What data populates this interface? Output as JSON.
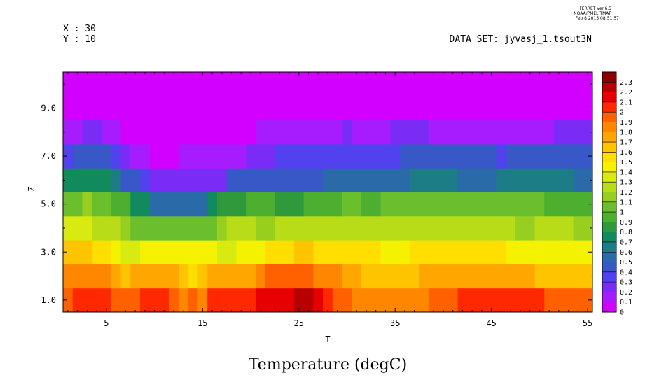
{
  "header": {
    "stamp_lines": [
      "FERRET  Ver.6.5",
      "NOAA/PMEL TMAP",
      "Feb  8 2015 08:51:57"
    ],
    "x_info": "X : 30",
    "y_info": "Y : 10",
    "dataset": "DATA SET: jyvasj_1.tsout3N"
  },
  "chart_data": {
    "type": "heatmap",
    "title": "Temperature (degC)",
    "xlabel": "T",
    "ylabel": "Z",
    "xlim": [
      0.5,
      55.5
    ],
    "ylim": [
      0.5,
      10.5
    ],
    "x_ticks": [
      5,
      15,
      25,
      35,
      45,
      55
    ],
    "x_tick_labels": [
      "5",
      "15",
      "25",
      "35",
      "45",
      "55"
    ],
    "y_ticks": [
      1,
      3,
      5,
      7,
      9
    ],
    "y_tick_labels": [
      "1.0",
      "3.0",
      "5.0",
      "7.0",
      "9.0"
    ],
    "colorbar": {
      "levels": [
        0,
        0.1,
        0.2,
        0.3,
        0.4,
        0.5,
        0.6,
        0.7,
        0.8,
        0.9,
        1,
        1.1,
        1.2,
        1.3,
        1.4,
        1.5,
        1.6,
        1.7,
        1.8,
        1.9,
        2,
        2.1,
        2.2,
        2.3
      ],
      "labels": [
        "0",
        "0.1",
        "0.2",
        "0.3",
        "0.4",
        "0.5",
        "0.6",
        "0.7",
        "0.8",
        "0.9",
        "1",
        "1.1",
        "1.2",
        "1.3",
        "1.4",
        "1.5",
        "1.6",
        "1.7",
        "1.8",
        "1.9",
        "2",
        "2.1",
        "2.2",
        "2.3"
      ],
      "colors": [
        "#d200ff",
        "#a71cff",
        "#7a2cf6",
        "#5141ee",
        "#3958c8",
        "#2a6aa8",
        "#1c7d86",
        "#118a5e",
        "#2f9a3c",
        "#4caf30",
        "#6cbf2c",
        "#96cf20",
        "#b8dc18",
        "#d8ea10",
        "#f4f200",
        "#ffde00",
        "#ffc400",
        "#ffa600",
        "#ff8700",
        "#ff6000",
        "#ff2800",
        "#e80000",
        "#b80000",
        "#8c0000"
      ]
    },
    "z_rows": [
      {
        "z": 1,
        "segments": [
          {
            "from": 0.5,
            "to": 1.5,
            "v": 1.95
          },
          {
            "from": 1.5,
            "to": 5.5,
            "v": 2.05
          },
          {
            "from": 5.5,
            "to": 8.5,
            "v": 1.95
          },
          {
            "from": 8.5,
            "to": 11.5,
            "v": 2.05
          },
          {
            "from": 11.5,
            "to": 12.5,
            "v": 1.95
          },
          {
            "from": 12.5,
            "to": 13.5,
            "v": 1.85
          },
          {
            "from": 13.5,
            "to": 14.5,
            "v": 1.95
          },
          {
            "from": 14.5,
            "to": 15.5,
            "v": 1.85
          },
          {
            "from": 15.5,
            "to": 20.5,
            "v": 2.05
          },
          {
            "from": 20.5,
            "to": 24.5,
            "v": 2.15
          },
          {
            "from": 24.5,
            "to": 26.5,
            "v": 2.25
          },
          {
            "from": 26.5,
            "to": 27.5,
            "v": 2.15
          },
          {
            "from": 27.5,
            "to": 28.5,
            "v": 2.05
          },
          {
            "from": 28.5,
            "to": 30.5,
            "v": 1.95
          },
          {
            "from": 30.5,
            "to": 38.5,
            "v": 1.85
          },
          {
            "from": 38.5,
            "to": 41.5,
            "v": 1.95
          },
          {
            "from": 41.5,
            "to": 50.5,
            "v": 2.05
          },
          {
            "from": 50.5,
            "to": 55.5,
            "v": 1.95
          }
        ]
      },
      {
        "z": 2,
        "segments": [
          {
            "from": 0.5,
            "to": 5.5,
            "v": 1.85
          },
          {
            "from": 5.5,
            "to": 6.5,
            "v": 1.75
          },
          {
            "from": 6.5,
            "to": 7.5,
            "v": 1.65
          },
          {
            "from": 7.5,
            "to": 12.5,
            "v": 1.75
          },
          {
            "from": 12.5,
            "to": 13.5,
            "v": 1.65
          },
          {
            "from": 13.5,
            "to": 14.5,
            "v": 1.55
          },
          {
            "from": 14.5,
            "to": 15.5,
            "v": 1.65
          },
          {
            "from": 15.5,
            "to": 20.5,
            "v": 1.75
          },
          {
            "from": 20.5,
            "to": 21.5,
            "v": 1.85
          },
          {
            "from": 21.5,
            "to": 26.5,
            "v": 1.95
          },
          {
            "from": 26.5,
            "to": 29.5,
            "v": 1.85
          },
          {
            "from": 29.5,
            "to": 31.5,
            "v": 1.75
          },
          {
            "from": 31.5,
            "to": 37.5,
            "v": 1.65
          },
          {
            "from": 37.5,
            "to": 49.5,
            "v": 1.75
          },
          {
            "from": 49.5,
            "to": 55.5,
            "v": 1.65
          }
        ]
      },
      {
        "z": 3,
        "segments": [
          {
            "from": 0.5,
            "to": 3.5,
            "v": 1.65
          },
          {
            "from": 3.5,
            "to": 5.5,
            "v": 1.55
          },
          {
            "from": 5.5,
            "to": 6.5,
            "v": 1.45
          },
          {
            "from": 6.5,
            "to": 8.5,
            "v": 1.35
          },
          {
            "from": 8.5,
            "to": 16.5,
            "v": 1.45
          },
          {
            "from": 16.5,
            "to": 18.5,
            "v": 1.35
          },
          {
            "from": 18.5,
            "to": 21.5,
            "v": 1.45
          },
          {
            "from": 21.5,
            "to": 24.5,
            "v": 1.55
          },
          {
            "from": 24.5,
            "to": 26.5,
            "v": 1.65
          },
          {
            "from": 26.5,
            "to": 33.5,
            "v": 1.55
          },
          {
            "from": 33.5,
            "to": 36.5,
            "v": 1.45
          },
          {
            "from": 36.5,
            "to": 46.5,
            "v": 1.55
          },
          {
            "from": 46.5,
            "to": 55.5,
            "v": 1.45
          }
        ]
      },
      {
        "z": 4,
        "segments": [
          {
            "from": 0.5,
            "to": 3.5,
            "v": 1.35
          },
          {
            "from": 3.5,
            "to": 6.5,
            "v": 1.25
          },
          {
            "from": 6.5,
            "to": 7.5,
            "v": 1.15
          },
          {
            "from": 7.5,
            "to": 16.5,
            "v": 1.05
          },
          {
            "from": 16.5,
            "to": 17.5,
            "v": 1.15
          },
          {
            "from": 17.5,
            "to": 20.5,
            "v": 1.25
          },
          {
            "from": 20.5,
            "to": 22.5,
            "v": 1.15
          },
          {
            "from": 22.5,
            "to": 47.5,
            "v": 1.25
          },
          {
            "from": 47.5,
            "to": 49.5,
            "v": 1.15
          },
          {
            "from": 49.5,
            "to": 53.5,
            "v": 1.25
          },
          {
            "from": 53.5,
            "to": 55.5,
            "v": 1.15
          }
        ]
      },
      {
        "z": 5,
        "segments": [
          {
            "from": 0.5,
            "to": 2.5,
            "v": 1.05
          },
          {
            "from": 2.5,
            "to": 3.5,
            "v": 1.15
          },
          {
            "from": 3.5,
            "to": 5.5,
            "v": 1.05
          },
          {
            "from": 5.5,
            "to": 7.5,
            "v": 0.95
          },
          {
            "from": 7.5,
            "to": 9.5,
            "v": 0.75
          },
          {
            "from": 9.5,
            "to": 15.5,
            "v": 0.55
          },
          {
            "from": 15.5,
            "to": 16.5,
            "v": 0.75
          },
          {
            "from": 16.5,
            "to": 19.5,
            "v": 0.85
          },
          {
            "from": 19.5,
            "to": 22.5,
            "v": 0.95
          },
          {
            "from": 22.5,
            "to": 25.5,
            "v": 0.85
          },
          {
            "from": 25.5,
            "to": 29.5,
            "v": 0.95
          },
          {
            "from": 29.5,
            "to": 31.5,
            "v": 1.05
          },
          {
            "from": 31.5,
            "to": 33.5,
            "v": 0.95
          },
          {
            "from": 33.5,
            "to": 50.5,
            "v": 1.05
          },
          {
            "from": 50.5,
            "to": 55.5,
            "v": 0.95
          }
        ]
      },
      {
        "z": 6,
        "segments": [
          {
            "from": 0.5,
            "to": 5.5,
            "v": 0.75
          },
          {
            "from": 5.5,
            "to": 6.5,
            "v": 0.65
          },
          {
            "from": 6.5,
            "to": 8.5,
            "v": 0.45
          },
          {
            "from": 8.5,
            "to": 9.5,
            "v": 0.35
          },
          {
            "from": 9.5,
            "to": 17.5,
            "v": 0.25
          },
          {
            "from": 17.5,
            "to": 27.5,
            "v": 0.45
          },
          {
            "from": 27.5,
            "to": 36.5,
            "v": 0.55
          },
          {
            "from": 36.5,
            "to": 41.5,
            "v": 0.65
          },
          {
            "from": 41.5,
            "to": 45.5,
            "v": 0.55
          },
          {
            "from": 45.5,
            "to": 53.5,
            "v": 0.65
          },
          {
            "from": 53.5,
            "to": 55.5,
            "v": 0.55
          }
        ]
      },
      {
        "z": 7,
        "segments": [
          {
            "from": 0.5,
            "to": 1.5,
            "v": 0.35
          },
          {
            "from": 1.5,
            "to": 5.5,
            "v": 0.45
          },
          {
            "from": 5.5,
            "to": 6.5,
            "v": 0.35
          },
          {
            "from": 6.5,
            "to": 7.5,
            "v": 0.25
          },
          {
            "from": 7.5,
            "to": 9.5,
            "v": 0.15
          },
          {
            "from": 9.5,
            "to": 12.5,
            "v": 0.05
          },
          {
            "from": 12.5,
            "to": 19.5,
            "v": 0.15
          },
          {
            "from": 19.5,
            "to": 22.5,
            "v": 0.25
          },
          {
            "from": 22.5,
            "to": 35.5,
            "v": 0.35
          },
          {
            "from": 35.5,
            "to": 45.5,
            "v": 0.45
          },
          {
            "from": 45.5,
            "to": 46.5,
            "v": 0.35
          },
          {
            "from": 46.5,
            "to": 55.5,
            "v": 0.45
          }
        ]
      },
      {
        "z": 8,
        "segments": [
          {
            "from": 0.5,
            "to": 2.5,
            "v": 0.15
          },
          {
            "from": 2.5,
            "to": 4.5,
            "v": 0.25
          },
          {
            "from": 4.5,
            "to": 6.5,
            "v": 0.15
          },
          {
            "from": 6.5,
            "to": 20.5,
            "v": 0.05
          },
          {
            "from": 20.5,
            "to": 29.5,
            "v": 0.15
          },
          {
            "from": 29.5,
            "to": 30.5,
            "v": 0.25
          },
          {
            "from": 30.5,
            "to": 34.5,
            "v": 0.15
          },
          {
            "from": 34.5,
            "to": 38.5,
            "v": 0.25
          },
          {
            "from": 38.5,
            "to": 51.5,
            "v": 0.15
          },
          {
            "from": 51.5,
            "to": 55.5,
            "v": 0.25
          }
        ]
      },
      {
        "z": 9,
        "segments": [
          {
            "from": 0.5,
            "to": 55.5,
            "v": 0.05
          }
        ]
      },
      {
        "z": 10,
        "segments": [
          {
            "from": 0.5,
            "to": 55.5,
            "v": 0.05
          }
        ]
      }
    ]
  }
}
